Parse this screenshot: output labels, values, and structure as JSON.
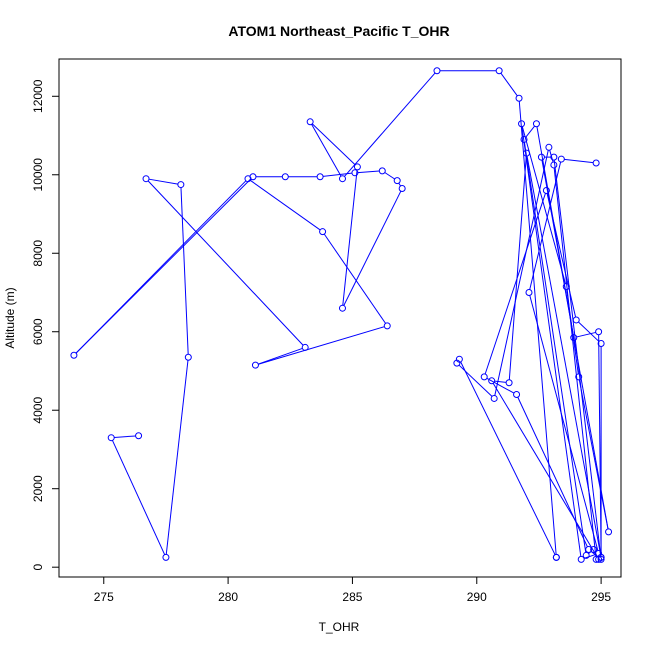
{
  "chart_data": {
    "type": "line",
    "title": "ATOM1 Northeast_Pacific T_OHR",
    "xlabel": "T_OHR",
    "ylabel": "Altitude (m)",
    "xlim": [
      273.2,
      295.8
    ],
    "ylim": [
      -250,
      12950
    ],
    "xticks": [
      275,
      280,
      285,
      290,
      295
    ],
    "yticks": [
      0,
      2000,
      4000,
      6000,
      8000,
      10000,
      12000
    ],
    "xtick_labels": [
      "275",
      "280",
      "285",
      "290",
      "295"
    ],
    "ytick_labels": [
      "0",
      "2000",
      "4000",
      "6000",
      "8000",
      "10000",
      "12000"
    ],
    "grid": false,
    "legend": "none",
    "colors": {
      "series": "#0000ff",
      "axes": "#000000",
      "background": "#ffffff"
    },
    "series": [
      {
        "x": [
          276.4,
          275.3,
          277.5,
          278.4,
          278.1,
          276.7,
          283.1,
          281.1,
          286.4,
          283.8,
          280.8,
          273.8,
          281.0,
          282.3,
          283.7,
          285.1,
          286.2,
          286.8,
          287.0,
          284.6,
          285.2,
          283.3,
          284.6,
          288.4,
          290.9,
          291.7,
          293.2,
          293.2,
          289.3,
          289.2,
          290.7,
          292.9,
          293.1,
          294.8,
          295.0,
          294.9,
          293.9,
          292.4,
          291.9,
          294.4,
          294.7,
          294.9,
          290.6,
          291.3,
          292.0,
          295.0,
          295.0,
          294.0,
          292.8,
          290.3,
          291.6,
          294.5,
          295.0,
          293.1,
          292.6,
          295.3,
          294.1,
          293.6,
          291.8,
          294.2,
          294.9,
          292.1,
          293.4,
          294.8
        ],
        "y": [
          3350,
          3300,
          250,
          5350,
          9750,
          9900,
          5600,
          5150,
          6150,
          8550,
          9900,
          5400,
          9950,
          9950,
          9950,
          10050,
          10100,
          9850,
          9650,
          6600,
          10200,
          11350,
          9900,
          12650,
          12650,
          11950,
          250,
          250,
          5300,
          5200,
          4300,
          10700,
          10250,
          200,
          250,
          6000,
          5850,
          11300,
          10900,
          300,
          450,
          200,
          4750,
          4700,
          10550,
          250,
          5700,
          6300,
          9600,
          4850,
          4400,
          450,
          200,
          10450,
          10450,
          900,
          4850,
          7150,
          11300,
          200,
          350,
          7000,
          10400,
          10300
        ]
      }
    ]
  }
}
